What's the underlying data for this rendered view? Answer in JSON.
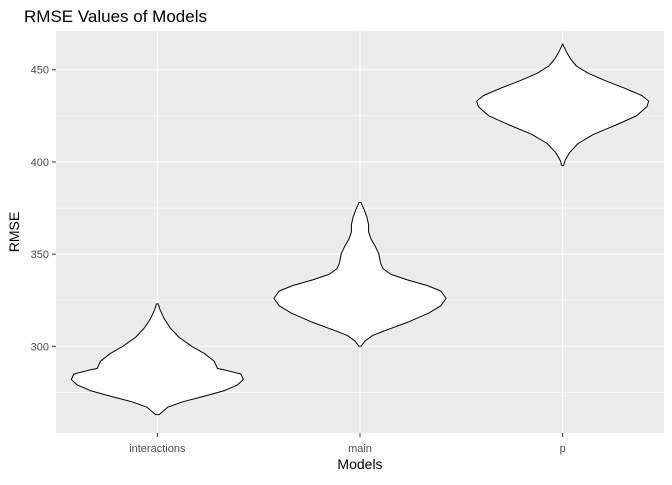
{
  "chart_data": {
    "type": "violin",
    "title": "RMSE Values of Models",
    "xlabel": "Models",
    "ylabel": "RMSE",
    "categories": [
      "interactions",
      "main",
      "p"
    ],
    "ylim": [
      253,
      471
    ],
    "yticks": [
      300,
      350,
      400,
      450
    ],
    "yticklabels": [
      "300",
      "350",
      "400",
      "450"
    ],
    "grid": true,
    "fill_color": "#ffffff",
    "outline_color": "#000000",
    "panel_color": "#ebebeb",
    "grid_color": "#ffffff",
    "series": [
      {
        "category": "interactions",
        "min": 263,
        "max": 323,
        "profile": [
          [
            263,
            0.02
          ],
          [
            267,
            0.12
          ],
          [
            270,
            0.3
          ],
          [
            273,
            0.55
          ],
          [
            276,
            0.78
          ],
          [
            279,
            0.93
          ],
          [
            282,
            1.0
          ],
          [
            285,
            0.97
          ],
          [
            287,
            0.8
          ],
          [
            288,
            0.7
          ],
          [
            292,
            0.66
          ],
          [
            296,
            0.55
          ],
          [
            300,
            0.4
          ],
          [
            305,
            0.25
          ],
          [
            310,
            0.15
          ],
          [
            315,
            0.08
          ],
          [
            320,
            0.03
          ],
          [
            323,
            0.01
          ]
        ]
      },
      {
        "category": "main",
        "min": 300,
        "max": 378,
        "profile": [
          [
            300,
            0.01
          ],
          [
            303,
            0.06
          ],
          [
            306,
            0.15
          ],
          [
            309,
            0.32
          ],
          [
            313,
            0.55
          ],
          [
            318,
            0.8
          ],
          [
            322,
            0.94
          ],
          [
            326,
            1.0
          ],
          [
            330,
            0.94
          ],
          [
            333,
            0.78
          ],
          [
            336,
            0.55
          ],
          [
            339,
            0.36
          ],
          [
            342,
            0.27
          ],
          [
            345,
            0.24
          ],
          [
            350,
            0.22
          ],
          [
            354,
            0.18
          ],
          [
            358,
            0.13
          ],
          [
            362,
            0.1
          ],
          [
            366,
            0.1
          ],
          [
            370,
            0.08
          ],
          [
            374,
            0.05
          ],
          [
            377,
            0.02
          ],
          [
            378,
            0.01
          ]
        ]
      },
      {
        "category": "p",
        "min": 398,
        "max": 464,
        "profile": [
          [
            398,
            0.01
          ],
          [
            401,
            0.03
          ],
          [
            405,
            0.08
          ],
          [
            410,
            0.18
          ],
          [
            415,
            0.36
          ],
          [
            420,
            0.62
          ],
          [
            425,
            0.86
          ],
          [
            430,
            0.98
          ],
          [
            433,
            1.0
          ],
          [
            436,
            0.92
          ],
          [
            440,
            0.72
          ],
          [
            444,
            0.5
          ],
          [
            448,
            0.3
          ],
          [
            452,
            0.16
          ],
          [
            456,
            0.09
          ],
          [
            460,
            0.04
          ],
          [
            463,
            0.01
          ],
          [
            464,
            0.0
          ]
        ]
      }
    ]
  }
}
